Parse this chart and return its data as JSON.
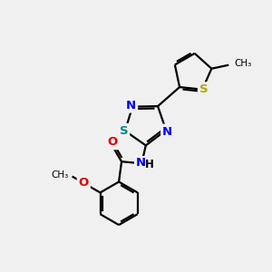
{
  "bg_color": "#f0f0f0",
  "bond_color": "#000000",
  "N_color": "#0000ff",
  "O_color": "#dd0000",
  "S_thiophene_color": "#aaaa00",
  "S_thiadiazole_color": "#008888",
  "lw": 1.6,
  "figsize": [
    3.0,
    3.0
  ],
  "dpi": 100,
  "xlim": [
    0,
    10
  ],
  "ylim": [
    0,
    10
  ]
}
